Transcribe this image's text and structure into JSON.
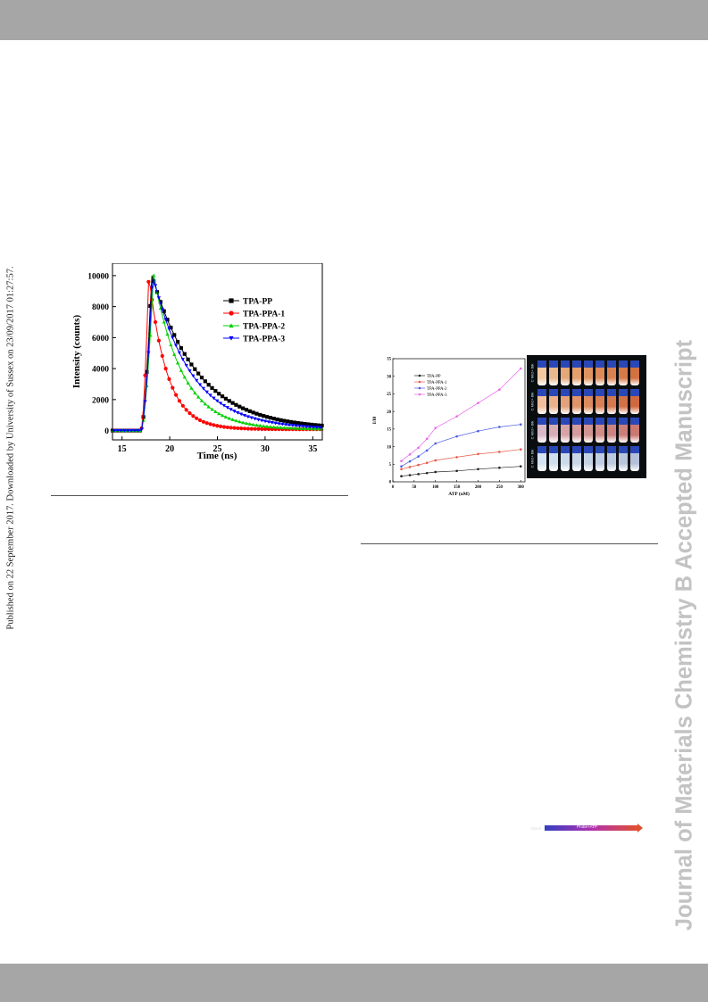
{
  "header": {},
  "side_note": "Published on 22 September 2017. Downloaded by University of Sussex on 23/09/2017 01:27:57.",
  "watermark": "Journal of Materials Chemistry B Accepted Manuscript",
  "chart_data": [
    {
      "type": "line",
      "xlabel": "Time (ns)",
      "ylabel": "Intensity (counts)",
      "xlim": [
        14,
        36
      ],
      "ylim": [
        -600,
        10800
      ],
      "xticks": [
        15,
        20,
        25,
        30,
        35
      ],
      "yticks": [
        0,
        2000,
        4000,
        6000,
        8000,
        10000
      ],
      "grid": false,
      "legend_position": "upper-right",
      "series": [
        {
          "name": "TPA-PP",
          "color": "#000000",
          "marker": "square",
          "peak_x": 18.1,
          "decay_tau": 4.8,
          "baseline": 0
        },
        {
          "name": "TPA-PPA-1",
          "color": "#ff0000",
          "marker": "circle",
          "peak_x": 17.8,
          "decay_tau": 1.9,
          "baseline": 0
        },
        {
          "name": "TPA-PPA-2",
          "color": "#00d000",
          "marker": "triangle-up",
          "peak_x": 18.3,
          "decay_tau": 3.0,
          "baseline": 0
        },
        {
          "name": "TPA-PPA-3",
          "color": "#0000ff",
          "marker": "triangle-down",
          "peak_x": 18.2,
          "decay_tau": 4.0,
          "baseline": 0
        }
      ]
    },
    {
      "type": "line",
      "xlabel": "ATP (uM)",
      "ylabel": "I/I0",
      "xlim": [
        0,
        310
      ],
      "ylim": [
        0,
        35
      ],
      "xticks": [
        0,
        50,
        100,
        150,
        200,
        250,
        300
      ],
      "yticks": [
        0,
        5,
        10,
        15,
        20,
        25,
        30,
        35
      ],
      "grid": false,
      "legend_position": "upper-left",
      "x": [
        20,
        40,
        60,
        80,
        100,
        150,
        200,
        250,
        300
      ],
      "series": [
        {
          "name": "TPA-PP",
          "color": "#222222",
          "values": [
            1.6,
            1.9,
            2.2,
            2.5,
            2.8,
            3.1,
            3.6,
            4.0,
            4.4
          ]
        },
        {
          "name": "TPA-PPA-1",
          "color": "#e85a4a",
          "values": [
            3.6,
            4.2,
            4.8,
            5.4,
            6.1,
            7.0,
            7.9,
            8.5,
            9.2
          ]
        },
        {
          "name": "TPA-PPA-2",
          "color": "#4a5ae8",
          "values": [
            4.4,
            5.8,
            7.2,
            8.9,
            10.9,
            12.9,
            14.4,
            15.6,
            16.3
          ]
        },
        {
          "name": "TPA-PPA-3",
          "color": "#e868e8",
          "values": [
            5.9,
            7.8,
            9.7,
            12.2,
            15.3,
            18.6,
            22.4,
            26.2,
            32.2
          ]
        }
      ]
    }
  ],
  "vial_image": {
    "row_labels": [
      "C Mn2+ Blk",
      "C Mn2+ Blk",
      "C Mn2+ Blk",
      "C Mn2+ Blk"
    ],
    "blank_label": "Blank",
    "arrow_label": "Probe+ATP",
    "row_colors": [
      [
        "#f2c8a0",
        "#e8b890",
        "#e4a878",
        "#e39f6c",
        "#df9460",
        "#db8a58",
        "#d98250",
        "#d57a48",
        "#d27240"
      ],
      [
        "#f0c09c",
        "#e9b08a",
        "#e3a27a",
        "#df946a",
        "#db8a5e",
        "#d88054",
        "#d5784c",
        "#d27046",
        "#cf6a40"
      ],
      [
        "#d8b8c8",
        "#d8acb4",
        "#d6a4a6",
        "#d49c9c",
        "#d29490",
        "#d08c86",
        "#ce847e",
        "#cc7e78",
        "#ca7872"
      ],
      [
        "#d4e4f4",
        "#d0dff0",
        "#ccdbec",
        "#c8d6e8",
        "#c4d2e6",
        "#c0cde2",
        "#bcc9e0",
        "#b8c5dc",
        "#b4c1d8"
      ]
    ]
  }
}
